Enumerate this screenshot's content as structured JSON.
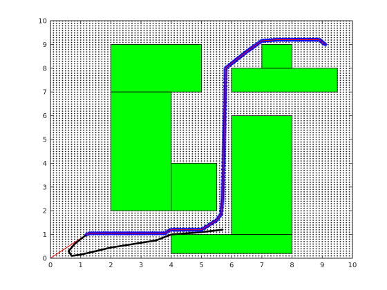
{
  "chart_data": {
    "type": "scatter",
    "title": "",
    "xlabel": "",
    "ylabel": "",
    "xlim": [
      0,
      10
    ],
    "ylim": [
      0,
      10
    ],
    "xticks": [
      "0",
      "1",
      "2",
      "3",
      "4",
      "5",
      "6",
      "7",
      "8",
      "9",
      "10"
    ],
    "yticks": [
      "0",
      "1",
      "2",
      "3",
      "4",
      "5",
      "6",
      "7",
      "8",
      "9",
      "10"
    ],
    "grid": "dense dot lattice, spacing 0.1",
    "colors": {
      "obstacle_fill": "#00ff00",
      "obstacle_edge": "#000000",
      "lattice_dot": "#000000",
      "straight_line": "#ff0000",
      "path_markers": "#0000ff",
      "path_line": "#ff0000",
      "return_path": "#000000"
    },
    "obstacles": [
      {
        "x": 2,
        "y": 7,
        "w": 3,
        "h": 2
      },
      {
        "x": 2,
        "y": 2,
        "w": 2,
        "h": 5
      },
      {
        "x": 4,
        "y": 2,
        "w": 1.5,
        "h": 2
      },
      {
        "x": 6,
        "y": 1,
        "w": 2,
        "h": 5
      },
      {
        "x": 4,
        "y": 0.2,
        "w": 4,
        "h": 0.8
      },
      {
        "x": 6,
        "y": 7,
        "w": 3.5,
        "h": 1
      },
      {
        "x": 7,
        "y": 8,
        "w": 1,
        "h": 1
      }
    ],
    "series": [
      {
        "style": "thin straight line",
        "x": [
          0,
          1.2
        ],
        "y": [
          0,
          1.0
        ]
      },
      {
        "style": "blue star markers with red line",
        "x": [
          1.2,
          1.3,
          1.5,
          2.0,
          2.5,
          3.0,
          3.5,
          3.8,
          3.9,
          4.0,
          4.5,
          5.0,
          5.5,
          5.65,
          5.7,
          5.72,
          5.74,
          5.76,
          5.78,
          5.8,
          6.0,
          6.5,
          7.0,
          7.5,
          8.0,
          8.5,
          8.9,
          9.1
        ],
        "y": [
          1.0,
          1.05,
          1.05,
          1.05,
          1.05,
          1.05,
          1.05,
          1.05,
          1.15,
          1.2,
          1.2,
          1.2,
          1.6,
          1.85,
          2.5,
          3.5,
          4.5,
          5.5,
          6.5,
          8.0,
          8.2,
          8.7,
          9.15,
          9.2,
          9.2,
          9.2,
          9.2,
          9.0
        ]
      },
      {
        "style": "black thick line",
        "x": [
          1.2,
          0.8,
          0.6,
          0.7,
          1.0,
          1.5,
          2.0,
          2.5,
          3.0,
          3.5,
          3.8,
          4.0,
          4.5,
          5.0,
          5.7
        ],
        "y": [
          1.0,
          0.6,
          0.3,
          0.1,
          0.15,
          0.3,
          0.45,
          0.55,
          0.65,
          0.75,
          0.9,
          1.0,
          1.05,
          1.1,
          1.2
        ]
      }
    ]
  }
}
